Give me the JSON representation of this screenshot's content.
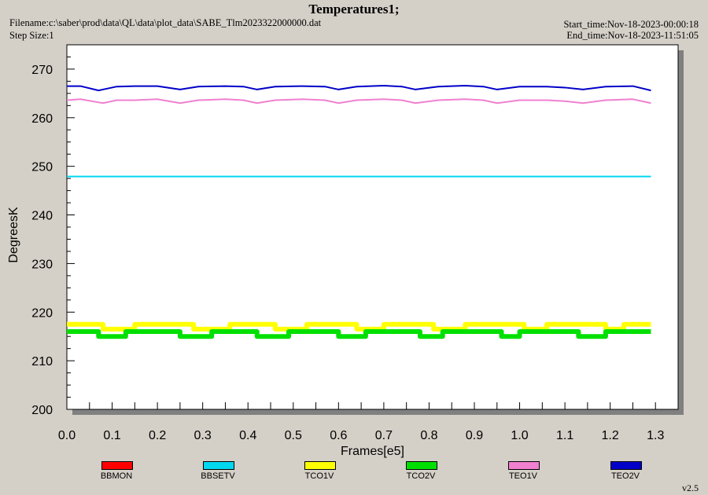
{
  "header": {
    "title": "Temperatures1;",
    "filename": "Filename:c:\\saber\\prod\\data\\QL\\data\\plot_data\\SABE_Tlm2023322000000.dat",
    "step_size": "Step Size:1",
    "start_time": "Start_time:Nov-18-2023-00:00:18",
    "end_time": "End_time:Nov-18-2023-11:51:05"
  },
  "footer": {
    "version": "v2.5"
  },
  "chart_data": {
    "type": "line",
    "title": "Temperatures1;",
    "xlabel": "Frames[e5]",
    "ylabel": "DegreesK",
    "xlim": [
      0.0,
      1.35
    ],
    "ylim": [
      200,
      275
    ],
    "x_ticks": [
      "0.0",
      "0.1",
      "0.2",
      "0.3",
      "0.4",
      "0.5",
      "0.6",
      "0.7",
      "0.8",
      "0.9",
      "1.0",
      "1.1",
      "1.2",
      "1.3"
    ],
    "y_ticks": [
      "200",
      "210",
      "220",
      "230",
      "240",
      "250",
      "260",
      "270"
    ],
    "legend_position": "bottom",
    "colors": {
      "plot_background": "#ffffff",
      "page_background": "#d4d0c8",
      "shadow": "#808080"
    },
    "series": [
      {
        "name": "BBMON",
        "color": "#ff0000",
        "x": [],
        "y": []
      },
      {
        "name": "BBSETV",
        "color": "#00d8f0",
        "x": [
          0.0,
          0.2,
          0.4,
          0.6,
          0.8,
          1.0,
          1.2,
          1.29
        ],
        "y": [
          247.9,
          247.9,
          247.9,
          247.9,
          247.9,
          247.9,
          247.9,
          247.9
        ]
      },
      {
        "name": "TCO1V",
        "color": "#ffff00",
        "x": [
          0.0,
          0.06,
          0.08,
          0.15,
          0.24,
          0.28,
          0.36,
          0.43,
          0.46,
          0.53,
          0.61,
          0.64,
          0.7,
          0.79,
          0.81,
          0.88,
          0.98,
          1.01,
          1.06,
          1.15,
          1.19,
          1.23,
          1.29
        ],
        "y": [
          217.5,
          217.5,
          216.5,
          217.5,
          217.5,
          216.5,
          217.5,
          217.5,
          216.5,
          217.5,
          217.5,
          216.5,
          217.5,
          217.5,
          216.5,
          217.5,
          217.5,
          216.5,
          217.5,
          217.5,
          216.5,
          217.5,
          217.5
        ]
      },
      {
        "name": "TCO2V",
        "color": "#00e000",
        "x": [
          0.0,
          0.07,
          0.13,
          0.25,
          0.32,
          0.42,
          0.49,
          0.6,
          0.66,
          0.78,
          0.83,
          0.96,
          1.0,
          1.13,
          1.19,
          1.29
        ],
        "y": [
          216.0,
          215.0,
          216.0,
          215.0,
          216.0,
          215.0,
          216.0,
          215.0,
          216.0,
          215.0,
          216.0,
          215.0,
          216.0,
          215.0,
          216.0,
          216.0
        ]
      },
      {
        "name": "TEO1V",
        "color": "#f080d0",
        "x": [
          0.0,
          0.03,
          0.08,
          0.11,
          0.15,
          0.2,
          0.25,
          0.29,
          0.35,
          0.39,
          0.42,
          0.46,
          0.52,
          0.57,
          0.6,
          0.64,
          0.7,
          0.74,
          0.77,
          0.82,
          0.88,
          0.92,
          0.95,
          1.0,
          1.06,
          1.1,
          1.14,
          1.19,
          1.25,
          1.29
        ],
        "y": [
          263.6,
          263.8,
          263.0,
          263.6,
          263.6,
          263.8,
          263.0,
          263.6,
          263.8,
          263.6,
          263.0,
          263.6,
          263.8,
          263.6,
          263.0,
          263.6,
          263.8,
          263.6,
          263.0,
          263.6,
          263.8,
          263.6,
          263.0,
          263.6,
          263.6,
          263.4,
          263.0,
          263.6,
          263.8,
          263.0
        ]
      },
      {
        "name": "TEO2V",
        "color": "#0000c8",
        "x": [
          0.0,
          0.03,
          0.07,
          0.11,
          0.15,
          0.2,
          0.25,
          0.29,
          0.35,
          0.39,
          0.42,
          0.46,
          0.52,
          0.57,
          0.6,
          0.64,
          0.7,
          0.74,
          0.77,
          0.82,
          0.88,
          0.92,
          0.95,
          1.0,
          1.06,
          1.1,
          1.14,
          1.19,
          1.25,
          1.29
        ],
        "y": [
          266.5,
          266.5,
          265.6,
          266.4,
          266.5,
          266.5,
          265.8,
          266.4,
          266.5,
          266.4,
          265.8,
          266.4,
          266.5,
          266.4,
          265.8,
          266.4,
          266.6,
          266.4,
          265.8,
          266.4,
          266.6,
          266.4,
          265.8,
          266.4,
          266.4,
          266.2,
          265.8,
          266.4,
          266.5,
          265.6
        ]
      }
    ]
  }
}
